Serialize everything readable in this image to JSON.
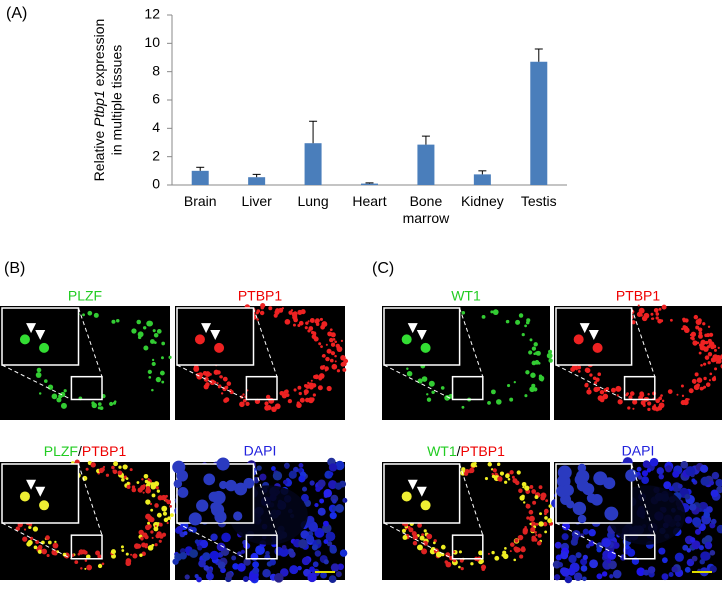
{
  "panel_a": "(A)",
  "panel_b": "(B)",
  "panel_c": "(C)",
  "chart_data": {
    "type": "bar",
    "ylabel": [
      "Relative",
      "Ptbp1",
      "expression",
      "in multiple tissues"
    ],
    "categories": [
      "Brain",
      "Liver",
      "Lung",
      "Heart",
      "Bone marrow",
      "Kidney",
      "Testis"
    ],
    "values": [
      1.0,
      0.55,
      2.95,
      0.1,
      2.85,
      0.75,
      8.7
    ],
    "errors": [
      0.25,
      0.2,
      1.55,
      0.05,
      0.6,
      0.25,
      0.9
    ],
    "color": "#4a7ebb",
    "ylim": [
      0,
      12
    ],
    "yticks": [
      0,
      2,
      4,
      6,
      8,
      10,
      12
    ]
  },
  "images_b": {
    "top_left": "PLZF",
    "top_right": "PTBP1",
    "merge_green": "PLZF",
    "merge_slash": "/",
    "merge_red": "PTBP1",
    "bottom_right": "DAPI"
  },
  "images_c": {
    "top_left": "WT1",
    "top_right": "PTBP1",
    "merge_green": "WT1",
    "merge_slash": "/",
    "merge_red": "PTBP1",
    "bottom_right": "DAPI"
  }
}
